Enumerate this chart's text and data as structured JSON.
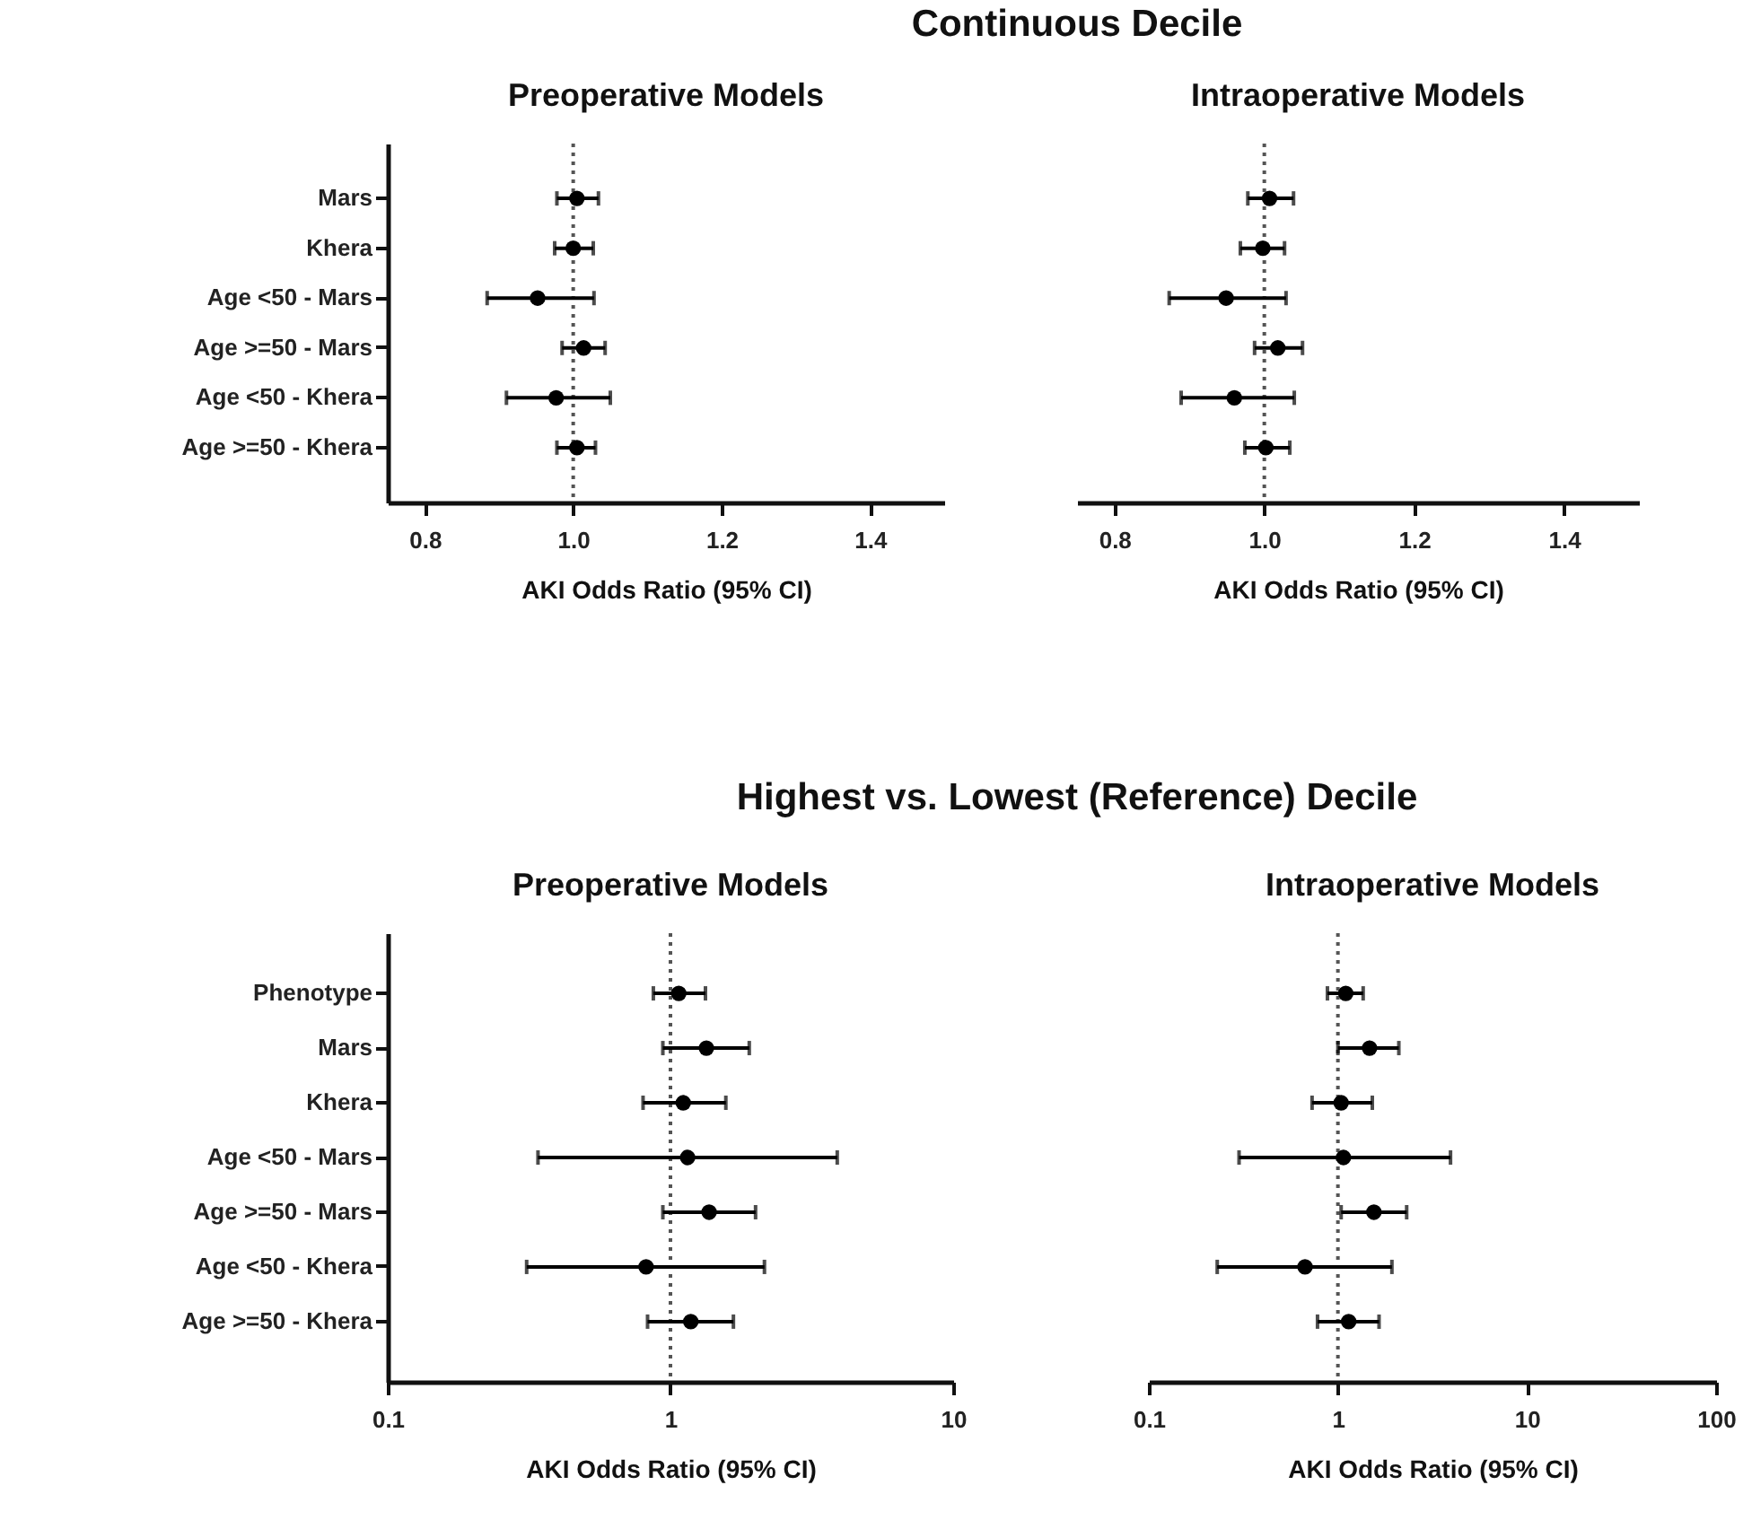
{
  "chart_data": [
    {
      "type": "scatter",
      "orientation": "horizontal",
      "title": "Preoperative Models",
      "annotations": [
        "Continuous Decile"
      ],
      "xlabel": "AKI Odds Ratio (95% CI)",
      "categories": [
        "Mars",
        "Khera",
        "Age <50 - Mars",
        "Age >=50 - Mars",
        "Age <50 - Khera",
        "Age >=50 - Khera"
      ],
      "values": [
        1.005,
        1.0,
        0.952,
        1.014,
        0.977,
        1.005
      ],
      "errors": [
        [
          0.978,
          1.034
        ],
        [
          0.975,
          1.027
        ],
        [
          0.884,
          1.028
        ],
        [
          0.985,
          1.043
        ],
        [
          0.91,
          1.05
        ],
        [
          0.978,
          1.03
        ]
      ],
      "color": "#000000",
      "marker": "circle",
      "xlim": [
        0.75,
        1.5
      ],
      "xticks": [
        0.8,
        {
          "value": 1,
          "label": "1.0"
        },
        1.2,
        1.4
      ],
      "ref_lines": [
        {
          "axis": "x",
          "value": 1,
          "line_style": "dotted",
          "color": "#555555"
        }
      ]
    },
    {
      "type": "scatter",
      "orientation": "horizontal",
      "title": "Intraoperative Models",
      "xlabel": "AKI Odds Ratio (95% CI)",
      "categories": [
        null,
        null,
        null,
        null,
        null,
        null
      ],
      "values": [
        1.007,
        0.998,
        0.949,
        1.018,
        0.96,
        1.002
      ],
      "errors": [
        [
          0.978,
          1.039
        ],
        [
          0.968,
          1.027
        ],
        [
          0.873,
          1.029
        ],
        [
          0.987,
          1.051
        ],
        [
          0.889,
          1.04
        ],
        [
          0.974,
          1.034
        ]
      ],
      "color": "#000000",
      "marker": "circle",
      "xlim": [
        0.75,
        1.5
      ],
      "xticks": [
        0.8,
        {
          "value": 1,
          "label": "1.0"
        },
        1.2,
        1.4
      ],
      "tick_labels": "x",
      "ref_lines": [
        {
          "axis": "x",
          "value": 1,
          "line_style": "dotted",
          "color": "#555555"
        }
      ]
    },
    {
      "type": "scatter",
      "orientation": "horizontal",
      "title": "Preoperative Models",
      "annotations": [
        "Highest vs. Lowest (Reference) Decile"
      ],
      "xlabel": "AKI Odds Ratio (95% CI)",
      "categories": [
        "Phenotype",
        "Mars",
        "Khera",
        "Age <50 - Mars",
        "Age >=50 - Mars",
        "Age <50 - Khera",
        "Age >=50 - Khera"
      ],
      "values": [
        1.07,
        1.34,
        1.11,
        1.15,
        1.37,
        0.82,
        1.18
      ],
      "errors": [
        [
          0.87,
          1.33
        ],
        [
          0.94,
          1.9
        ],
        [
          0.8,
          1.57
        ],
        [
          0.34,
          3.89
        ],
        [
          0.94,
          2.0
        ],
        [
          0.31,
          2.15
        ],
        [
          0.83,
          1.67
        ]
      ],
      "color": "#000000",
      "marker": "circle",
      "log": "x",
      "xlim": [
        0.1,
        10
      ],
      "xticks": [
        0.1,
        1,
        10
      ],
      "ref_lines": [
        {
          "axis": "x",
          "value": 1,
          "line_style": "dotted",
          "color": "#555555"
        }
      ]
    },
    {
      "type": "scatter",
      "orientation": "horizontal",
      "title": "Intraoperative Models",
      "xlabel": "AKI Odds Ratio (95% CI)",
      "categories": [
        null,
        null,
        null,
        null,
        null,
        null,
        null
      ],
      "values": [
        1.1,
        1.47,
        1.04,
        1.07,
        1.55,
        0.67,
        1.14
      ],
      "errors": [
        [
          0.88,
          1.36
        ],
        [
          1.0,
          2.1
        ],
        [
          0.73,
          1.52
        ],
        [
          0.3,
          3.94
        ],
        [
          1.04,
          2.31
        ],
        [
          0.23,
          1.93
        ],
        [
          0.78,
          1.65
        ]
      ],
      "color": "#000000",
      "marker": "circle",
      "log": "x",
      "xlim": [
        0.1,
        100
      ],
      "xticks": [
        0.1,
        1,
        10,
        100
      ],
      "tick_labels": "x",
      "ref_lines": [
        {
          "axis": "x",
          "value": 1,
          "line_style": "dotted",
          "color": "#555555"
        }
      ]
    }
  ]
}
